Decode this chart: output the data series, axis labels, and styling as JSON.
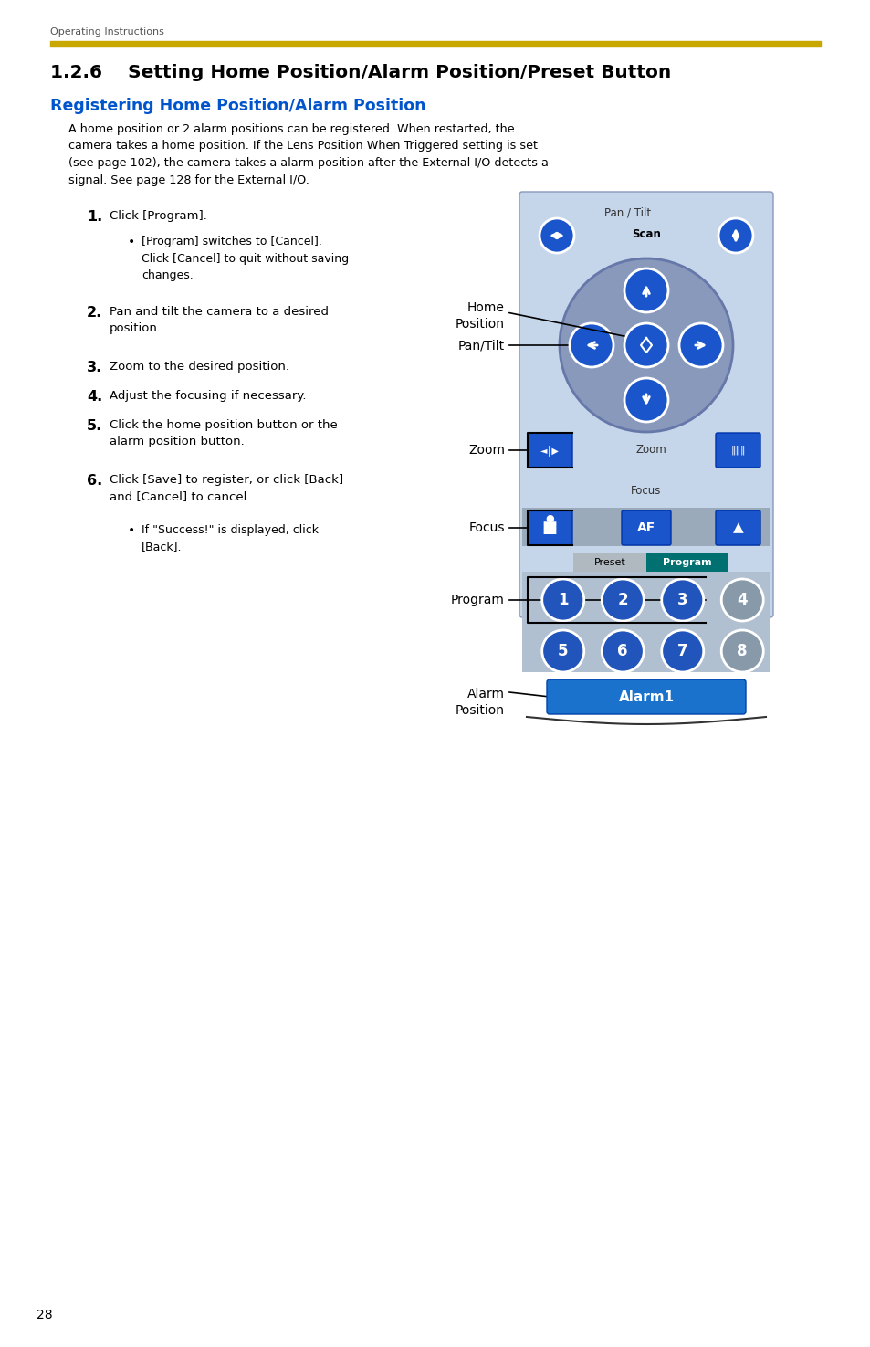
{
  "page_number": "28",
  "header_text": "Operating Instructions",
  "gold_bar_color": "#C8A800",
  "section_title": "1.2.6    Setting Home Position/Alarm Position/Preset Button",
  "subsection_title": "Registering Home Position/Alarm Position",
  "subsection_color": "#0055CC",
  "body_text": "A home position or 2 alarm positions can be registered. When restarted, the\ncamera takes a home position. If the Lens Position When Triggered setting is set\n(see page 102), the camera takes a alarm position after the External I/O detects a\nsignal. See page 128 for the External I/O.",
  "panel_light_blue": "#C5D5EA",
  "panel_mid_blue": "#A8BEDB",
  "dpad_bg": "#8899BB",
  "blue_btn": "#1A55CC",
  "teal_program": "#007070",
  "preset_gray": "#B0B8C0",
  "alarm_blue": "#1A72CC",
  "num_circle_blue": "#2255BB",
  "num_circle_gray": "#889AAA",
  "white": "#FFFFFF",
  "black": "#000000",
  "scan_label_color": "#000000",
  "pan_tilt_label_color": "#444444",
  "zoom_bg": "#C5D5EA",
  "focus_bg": "#909090"
}
